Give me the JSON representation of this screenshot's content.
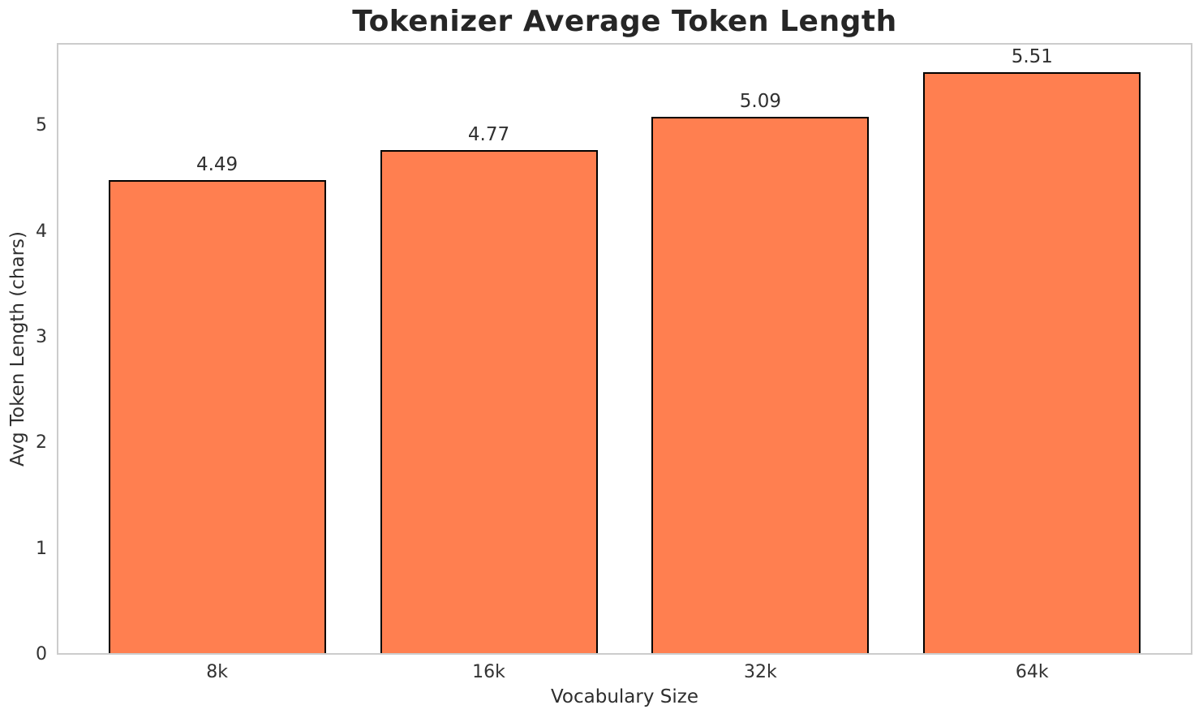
{
  "figure": {
    "background": "#ffffff"
  },
  "chart_data": {
    "type": "bar",
    "title": "Tokenizer Average Token Length",
    "xlabel": "Vocabulary Size",
    "ylabel": "Avg Token Length (chars)",
    "categories": [
      "8k",
      "16k",
      "32k",
      "64k"
    ],
    "values": [
      4.49,
      4.77,
      5.09,
      5.51
    ],
    "value_labels": [
      "4.49",
      "4.77",
      "5.09",
      "5.51"
    ],
    "yticks": [
      "0",
      "1",
      "2",
      "3",
      "4",
      "5"
    ],
    "ylim": [
      0,
      5.785
    ],
    "grid": true,
    "legend_position": "none",
    "bar_color": "#FF7F50",
    "bar_edge_color": "#000000",
    "grid_color": "#eeeeee",
    "spine_color": "#cccccc",
    "text_color": "#2e2e2e"
  }
}
